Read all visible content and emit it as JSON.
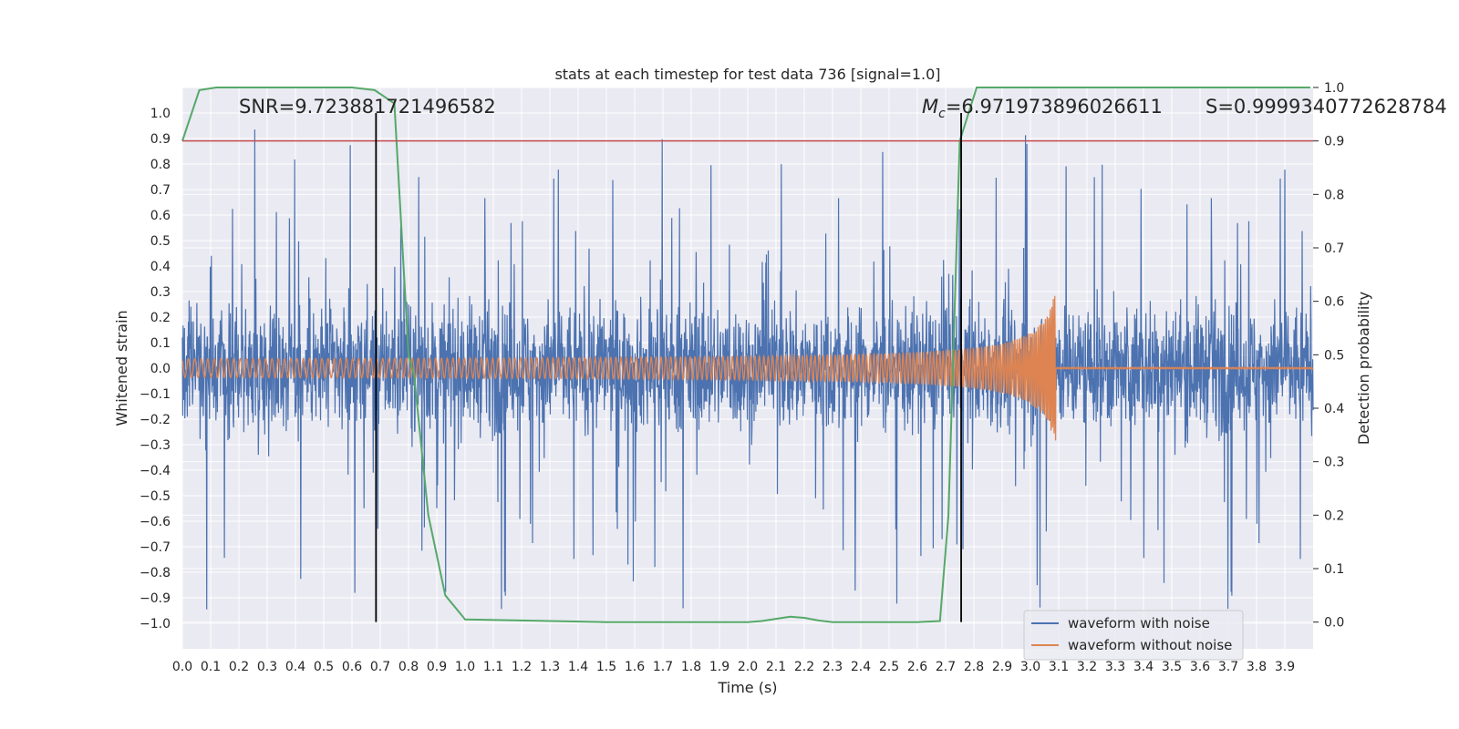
{
  "chart_data": {
    "type": "line",
    "title": "stats at each timestep for test data 736 [signal=1.0]",
    "xlabel": "Time (s)",
    "ylabel": "Whitened strain",
    "ylabel_right": "Detection probability",
    "xlim": [
      0.0,
      4.0
    ],
    "ylim": [
      -1.1,
      1.1
    ],
    "ylim_right": [
      -0.05,
      1.0
    ],
    "x_ticks": [
      "0.0",
      "0.1",
      "0.2",
      "0.3",
      "0.4",
      "0.5",
      "0.6",
      "0.7",
      "0.8",
      "0.9",
      "1.0",
      "1.1",
      "1.2",
      "1.3",
      "1.4",
      "1.5",
      "1.6",
      "1.7",
      "1.8",
      "1.9",
      "2.0",
      "2.1",
      "2.2",
      "2.3",
      "2.4",
      "2.5",
      "2.6",
      "2.7",
      "2.8",
      "2.9",
      "3.0",
      "3.1",
      "3.2",
      "3.3",
      "3.4",
      "3.5",
      "3.6",
      "3.7",
      "3.8",
      "3.9"
    ],
    "y_ticks": [
      "1.0",
      "0.9",
      "0.8",
      "0.7",
      "0.6",
      "0.5",
      "0.4",
      "0.3",
      "0.2",
      "0.1",
      "0.0",
      "−0.1",
      "−0.2",
      "−0.3",
      "−0.4",
      "−0.5",
      "−0.6",
      "−0.7",
      "−0.8",
      "−0.9",
      "−1.0"
    ],
    "y_ticks_right": [
      "1.0",
      "0.9",
      "0.8",
      "0.7",
      "0.6",
      "0.5",
      "0.4",
      "0.3",
      "0.2",
      "0.1",
      "0.0"
    ],
    "grid": true,
    "legend_position": "lower-right",
    "series": [
      {
        "name": "waveform with noise",
        "color": "#4c72b0",
        "axis": "left",
        "kind": "noise",
        "spread": 0.32,
        "spikes": 0.95
      },
      {
        "name": "waveform without noise",
        "color": "#dd8452",
        "axis": "left",
        "kind": "chirp",
        "amplitude_start": 0.03,
        "amplitude_peak": 0.31,
        "merger_time": 3.09
      },
      {
        "name": "",
        "color": "#55a868",
        "axis": "right",
        "kind": "probability",
        "x": [
          0.0,
          0.06,
          0.12,
          0.2,
          0.3,
          0.4,
          0.5,
          0.6,
          0.68,
          0.75,
          0.8,
          0.82,
          0.87,
          0.93,
          1.0,
          1.5,
          2.0,
          2.05,
          2.1,
          2.15,
          2.2,
          2.25,
          2.3,
          2.4,
          2.5,
          2.6,
          2.68,
          2.71,
          2.75,
          2.81,
          2.9,
          3.5,
          3.99
        ],
        "values": [
          0.9,
          0.995,
          1.0,
          1.0,
          1.0,
          1.0,
          1.0,
          1.0,
          0.995,
          0.97,
          0.5,
          0.46,
          0.2,
          0.05,
          0.005,
          0.0,
          0.0,
          0.002,
          0.006,
          0.01,
          0.008,
          0.003,
          0.0,
          0.0,
          0.0,
          0.0,
          0.002,
          0.2,
          0.9,
          1.0,
          1.0,
          1.0,
          1.0
        ]
      }
    ],
    "threshold": {
      "axis": "right",
      "value": 0.9,
      "color": "#c44e52"
    },
    "vertical_markers": [
      {
        "x": 0.685
      },
      {
        "x": 2.755
      }
    ],
    "annotations": {
      "snr": "SNR=9.723881721496582",
      "mc_symbol": "M",
      "mc_sub": "c",
      "mc_value": "=6.971973896026611",
      "s": "S=0.9999340772628784"
    }
  }
}
